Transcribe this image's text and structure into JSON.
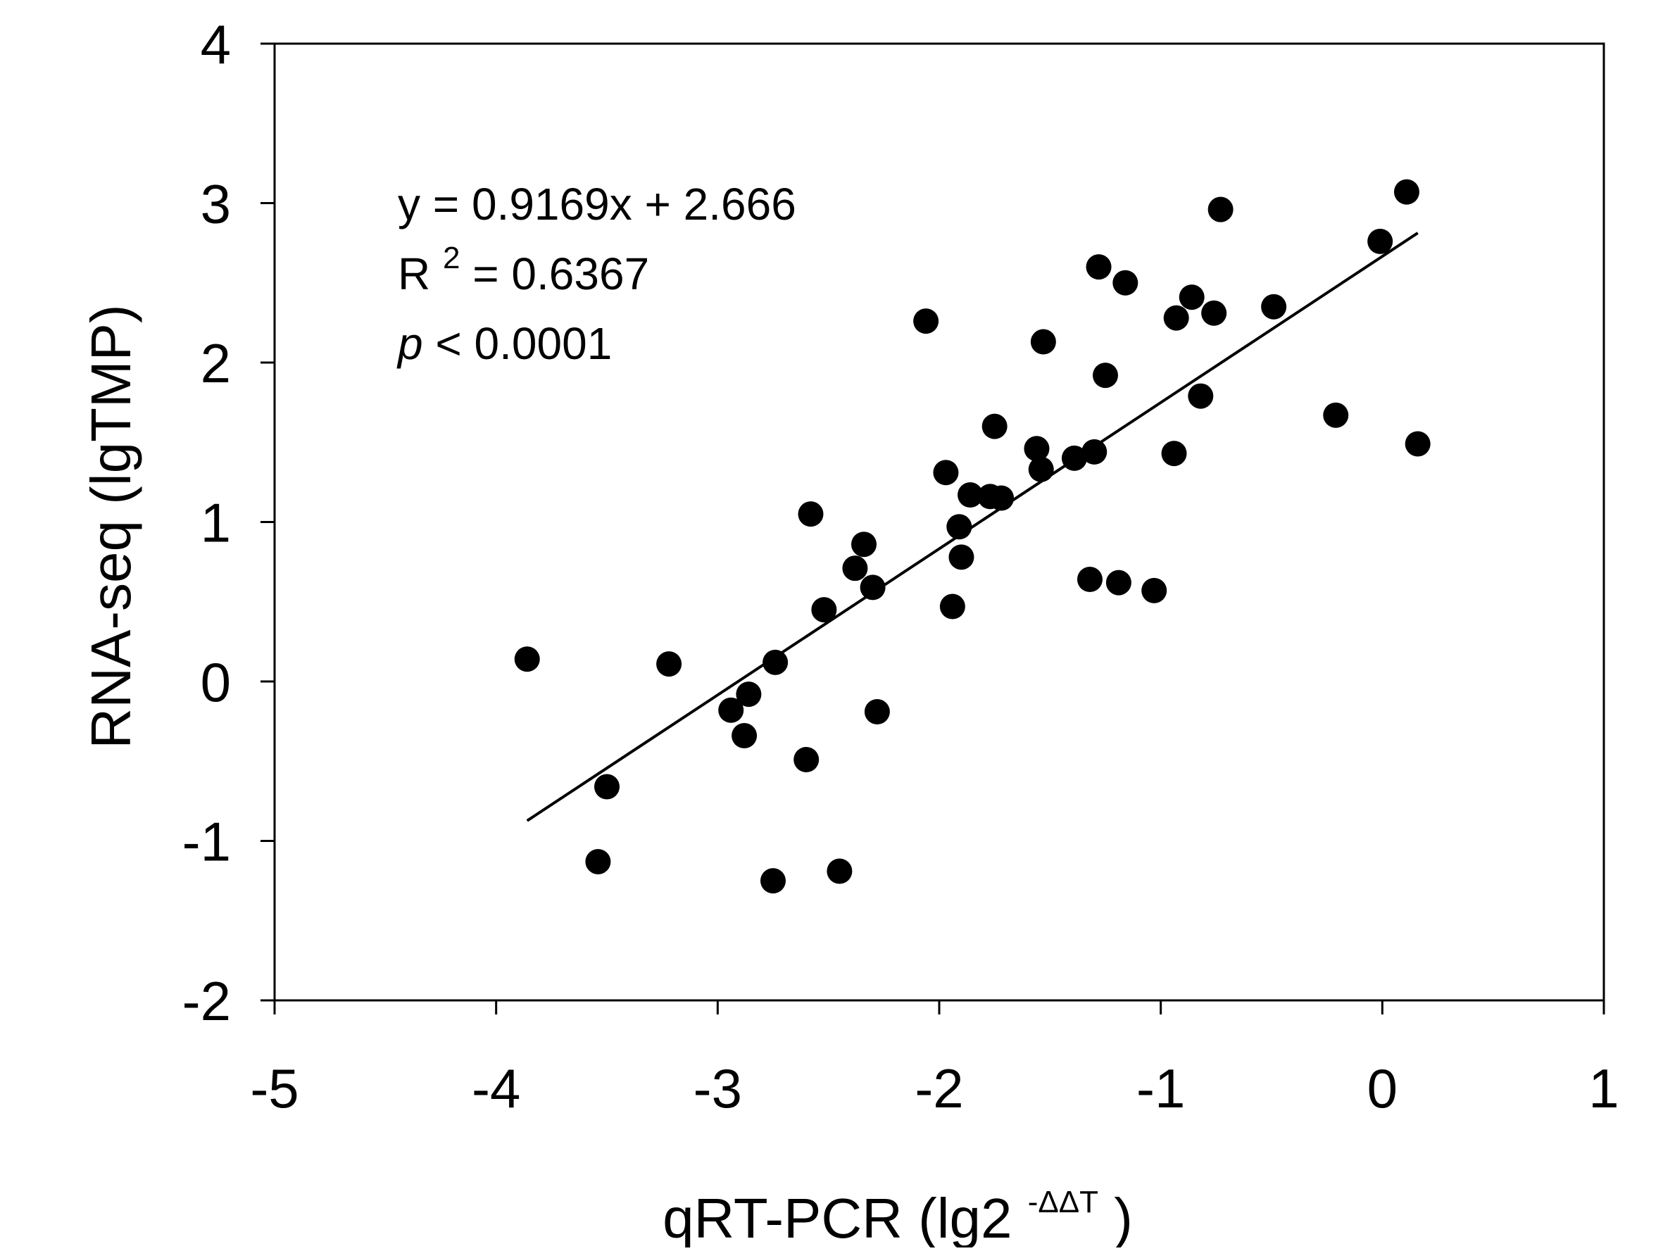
{
  "chart_data": {
    "type": "scatter",
    "title": "",
    "xlabel": {
      "main": "qRT-PCR (lg2",
      "sup": "-ΔΔT",
      "close": ")"
    },
    "ylabel": "RNA-seq (lgTMP)",
    "xlim": [
      -5,
      1
    ],
    "ylim": [
      -2,
      4
    ],
    "xticks": [
      -5,
      -4,
      -3,
      -2,
      -1,
      0,
      1
    ],
    "yticks": [
      -2,
      -1,
      0,
      1,
      2,
      3,
      4
    ],
    "xtick_labels": [
      "-5",
      "-4",
      "-3",
      "-2",
      "-1",
      "0",
      "1"
    ],
    "ytick_labels": [
      "-2",
      "-1",
      "0",
      "1",
      "2",
      "3",
      "4"
    ],
    "grid": false,
    "legend": "none",
    "marker_color": "#000000",
    "line_color": "#000000",
    "points": [
      {
        "x": -3.86,
        "y": 0.14
      },
      {
        "x": -3.54,
        "y": -1.13
      },
      {
        "x": -3.5,
        "y": -0.66
      },
      {
        "x": -3.22,
        "y": 0.11
      },
      {
        "x": -2.94,
        "y": -0.18
      },
      {
        "x": -2.88,
        "y": -0.34
      },
      {
        "x": -2.86,
        "y": -0.08
      },
      {
        "x": -2.75,
        "y": -1.25
      },
      {
        "x": -2.74,
        "y": 0.12
      },
      {
        "x": -2.6,
        "y": -0.49
      },
      {
        "x": -2.58,
        "y": 1.05
      },
      {
        "x": -2.52,
        "y": 0.45
      },
      {
        "x": -2.45,
        "y": -1.19
      },
      {
        "x": -2.38,
        "y": 0.71
      },
      {
        "x": -2.34,
        "y": 0.86
      },
      {
        "x": -2.3,
        "y": 0.59
      },
      {
        "x": -2.28,
        "y": -0.19
      },
      {
        "x": -2.06,
        "y": 2.26
      },
      {
        "x": -1.97,
        "y": 1.31
      },
      {
        "x": -1.94,
        "y": 0.47
      },
      {
        "x": -1.91,
        "y": 0.97
      },
      {
        "x": -1.9,
        "y": 0.78
      },
      {
        "x": -1.86,
        "y": 1.17
      },
      {
        "x": -1.77,
        "y": 1.16
      },
      {
        "x": -1.75,
        "y": 1.6
      },
      {
        "x": -1.72,
        "y": 1.15
      },
      {
        "x": -1.56,
        "y": 1.46
      },
      {
        "x": -1.54,
        "y": 1.33
      },
      {
        "x": -1.53,
        "y": 2.13
      },
      {
        "x": -1.39,
        "y": 1.4
      },
      {
        "x": -1.32,
        "y": 0.64
      },
      {
        "x": -1.3,
        "y": 1.44
      },
      {
        "x": -1.28,
        "y": 2.6
      },
      {
        "x": -1.25,
        "y": 1.92
      },
      {
        "x": -1.19,
        "y": 0.62
      },
      {
        "x": -1.16,
        "y": 2.5
      },
      {
        "x": -1.03,
        "y": 0.57
      },
      {
        "x": -0.94,
        "y": 1.43
      },
      {
        "x": -0.93,
        "y": 2.28
      },
      {
        "x": -0.86,
        "y": 2.41
      },
      {
        "x": -0.82,
        "y": 1.79
      },
      {
        "x": -0.76,
        "y": 2.31
      },
      {
        "x": -0.73,
        "y": 2.96
      },
      {
        "x": -0.49,
        "y": 2.35
      },
      {
        "x": -0.21,
        "y": 1.67
      },
      {
        "x": -0.01,
        "y": 2.76
      },
      {
        "x": 0.11,
        "y": 3.07
      },
      {
        "x": 0.16,
        "y": 1.49
      }
    ],
    "trendline": {
      "slope": 0.9169,
      "intercept": 2.666,
      "x_range": [
        -3.86,
        0.16
      ]
    },
    "annotations": {
      "equation": "y = 0.9169x + 2.666",
      "r2_prefix": "R",
      "r2_sup": "2",
      "r2_value": " = 0.6367",
      "p_symbol": "p",
      "p_value": " < 0.0001"
    }
  }
}
